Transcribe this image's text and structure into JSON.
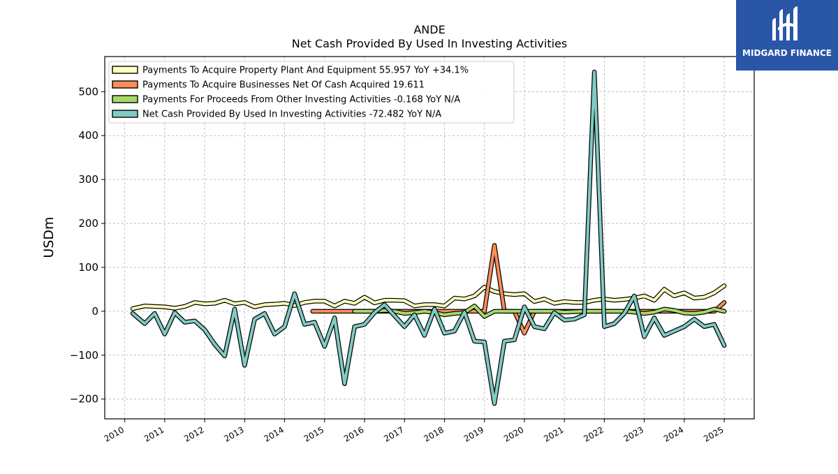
{
  "chart_data": {
    "type": "line",
    "title": "ANDE",
    "subtitle": "Net Cash Provided By Used In Investing Activities",
    "xlabel": "",
    "ylabel": "USDm",
    "xlim": [
      2009.5,
      2025.75
    ],
    "ylim": [
      -245,
      580
    ],
    "x_ticks": [
      "2010",
      "2011",
      "2012",
      "2013",
      "2014",
      "2015",
      "2016",
      "2017",
      "2018",
      "2019",
      "2020",
      "2021",
      "2022",
      "2023",
      "2024",
      "2025"
    ],
    "y_ticks": [
      -200,
      -100,
      0,
      100,
      200,
      300,
      400,
      500
    ],
    "y_tick_labels": [
      "−200",
      "−100",
      "0",
      "100",
      "200",
      "300",
      "400",
      "500"
    ],
    "grid": true,
    "legend_position": "top-left",
    "series": [
      {
        "name": "Payments To Acquire Property Plant And Equipment",
        "legend": "Payments To Acquire Property Plant And Equipment  55.957 YoY +34.1%",
        "color": "#ffffbf",
        "x": [
          2010.2,
          2010.5,
          2010.75,
          2011.0,
          2011.25,
          2011.5,
          2011.75,
          2012.0,
          2012.25,
          2012.5,
          2012.75,
          2013.0,
          2013.25,
          2013.5,
          2013.75,
          2014.0,
          2014.25,
          2014.5,
          2014.75,
          2015.0,
          2015.25,
          2015.5,
          2015.75,
          2016.0,
          2016.25,
          2016.5,
          2016.75,
          2017.0,
          2017.25,
          2017.5,
          2017.75,
          2018.0,
          2018.25,
          2018.5,
          2018.75,
          2019.0,
          2019.25,
          2019.5,
          2019.75,
          2020.0,
          2020.25,
          2020.5,
          2020.75,
          2021.0,
          2021.25,
          2021.5,
          2021.75,
          2022.0,
          2022.25,
          2022.5,
          2022.75,
          2023.0,
          2023.25,
          2023.5,
          2023.75,
          2024.0,
          2024.25,
          2024.5,
          2024.75,
          2025.0
        ],
        "y": [
          6,
          12,
          11,
          10,
          7,
          11,
          20,
          17,
          18,
          25,
          17,
          20,
          10,
          15,
          16,
          18,
          13,
          20,
          23,
          23,
          12,
          23,
          18,
          32,
          19,
          25,
          25,
          24,
          12,
          15,
          15,
          12,
          30,
          28,
          35,
          55,
          45,
          40,
          38,
          40,
          22,
          28,
          18,
          22,
          20,
          20,
          25,
          28,
          25,
          27,
          30,
          35,
          25,
          50,
          35,
          42,
          30,
          32,
          42,
          58
        ]
      },
      {
        "name": "Payments To Acquire Businesses Net Of Cash Acquired",
        "legend": "Payments To Acquire Businesses Net Of Cash Acquired  19.611",
        "color": "#fc8d59",
        "x": [
          2014.7,
          2015.0,
          2015.25,
          2015.5,
          2015.75,
          2016.0,
          2016.25,
          2016.5,
          2016.75,
          2017.0,
          2017.25,
          2017.5,
          2017.75,
          2018.0,
          2018.25,
          2018.5,
          2018.75,
          2019.0,
          2019.25,
          2019.5,
          2019.75,
          2020.0,
          2020.25,
          2020.5,
          2020.75,
          2021.0,
          2021.25,
          2021.5,
          2021.75,
          2022.0,
          2022.25,
          2022.5,
          2022.75,
          2023.0,
          2023.25,
          2023.5,
          2023.75,
          2024.0,
          2024.25,
          2024.5,
          2024.75,
          2025.0
        ],
        "y": [
          0,
          0,
          0,
          0,
          0,
          0,
          0,
          0,
          0,
          0,
          0,
          0,
          0,
          0,
          0,
          0,
          0,
          0,
          150,
          0,
          0,
          -50,
          0,
          0,
          0,
          0,
          0,
          0,
          0,
          0,
          0,
          0,
          0,
          0,
          0,
          0,
          0,
          0,
          0,
          0,
          0,
          20
        ]
      },
      {
        "name": "Payments For Proceeds From Other Investing Activities",
        "legend": "Payments For Proceeds From Other Investing Activities  -0.168 YoY N/A",
        "color": "#a6d96a",
        "x": [
          2015.75,
          2016.0,
          2016.25,
          2016.5,
          2016.75,
          2017.0,
          2017.25,
          2017.5,
          2017.75,
          2018.0,
          2018.25,
          2018.5,
          2018.75,
          2019.0,
          2019.25,
          2019.5,
          2019.75,
          2020.0,
          2020.25,
          2020.5,
          2020.75,
          2021.0,
          2021.25,
          2021.5,
          2021.75,
          2022.0,
          2022.25,
          2022.5,
          2022.75,
          2023.0,
          2023.25,
          2023.5,
          2023.75,
          2024.0,
          2024.25,
          2024.5,
          2024.75,
          2025.0
        ],
        "y": [
          0,
          0,
          0,
          2,
          0,
          -5,
          -3,
          0,
          -3,
          -8,
          -5,
          -3,
          12,
          -12,
          0,
          0,
          0,
          0,
          0,
          0,
          0,
          -2,
          -1,
          0,
          0,
          0,
          0,
          0,
          -2,
          -5,
          -2,
          5,
          2,
          -4,
          -5,
          -2,
          5,
          0
        ]
      },
      {
        "name": "Net Cash Provided By Used In Investing Activities",
        "legend": "Net Cash Provided By Used In Investing Activities  -72.482 YoY N/A",
        "color": "#80cbc4",
        "x": [
          2010.2,
          2010.5,
          2010.75,
          2011.0,
          2011.25,
          2011.5,
          2011.75,
          2012.0,
          2012.25,
          2012.5,
          2012.75,
          2013.0,
          2013.25,
          2013.5,
          2013.75,
          2014.0,
          2014.25,
          2014.5,
          2014.75,
          2015.0,
          2015.25,
          2015.5,
          2015.75,
          2016.0,
          2016.25,
          2016.5,
          2016.75,
          2017.0,
          2017.25,
          2017.5,
          2017.75,
          2018.0,
          2018.25,
          2018.5,
          2018.75,
          2019.0,
          2019.25,
          2019.5,
          2019.75,
          2020.0,
          2020.25,
          2020.5,
          2020.75,
          2021.0,
          2021.25,
          2021.5,
          2021.75,
          2022.0,
          2022.25,
          2022.5,
          2022.75,
          2023.0,
          2023.25,
          2023.5,
          2023.75,
          2024.0,
          2024.25,
          2024.5,
          2024.75,
          2025.0
        ],
        "y": [
          -5,
          -28,
          -5,
          -52,
          -3,
          -25,
          -22,
          -42,
          -75,
          -102,
          5,
          -123,
          -18,
          -5,
          -52,
          -35,
          40,
          -30,
          -25,
          -80,
          -15,
          -165,
          -35,
          -30,
          -3,
          15,
          -10,
          -35,
          -8,
          -55,
          5,
          -50,
          -45,
          -2,
          -68,
          -70,
          -210,
          -68,
          -65,
          10,
          -35,
          -40,
          -3,
          -20,
          -18,
          -8,
          545,
          -35,
          -28,
          -5,
          35,
          -58,
          -15,
          -55,
          -45,
          -35,
          -18,
          -35,
          -30,
          -78
        ]
      }
    ]
  },
  "logo": {
    "text": "MIDGARD FINANCE",
    "bg_color": "#2a56a8",
    "icon": "midgard-logo-icon"
  }
}
